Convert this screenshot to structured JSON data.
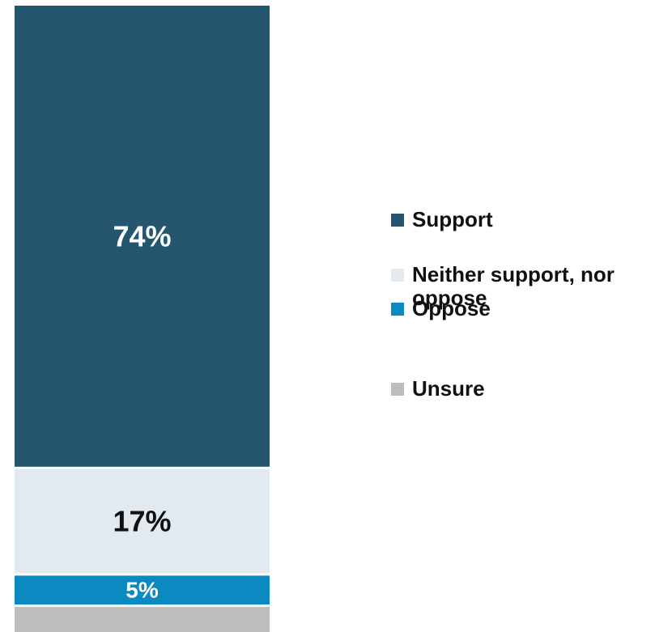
{
  "chart_data": {
    "type": "bar",
    "stacked": true,
    "orientation": "vertical",
    "categories": [
      ""
    ],
    "series": [
      {
        "name": "Support",
        "values": [
          74
        ],
        "color": "#24566f",
        "label": "74%",
        "label_color": "#ffffff"
      },
      {
        "name": "Neither support, nor oppose",
        "values": [
          17
        ],
        "color": "#e1e9f1",
        "label": "17%",
        "label_color": "#111111"
      },
      {
        "name": "Oppose",
        "values": [
          5
        ],
        "color": "#0a8ac0",
        "label": "5%",
        "label_color": "#ffffff"
      },
      {
        "name": "Unsure",
        "values": [
          4
        ],
        "color": "#bdbdbd",
        "label": "",
        "label_color": "#111111"
      }
    ],
    "title": "",
    "xlabel": "",
    "ylabel": "",
    "ylim": [
      0,
      100
    ],
    "grid": false,
    "legend_position": "right"
  }
}
